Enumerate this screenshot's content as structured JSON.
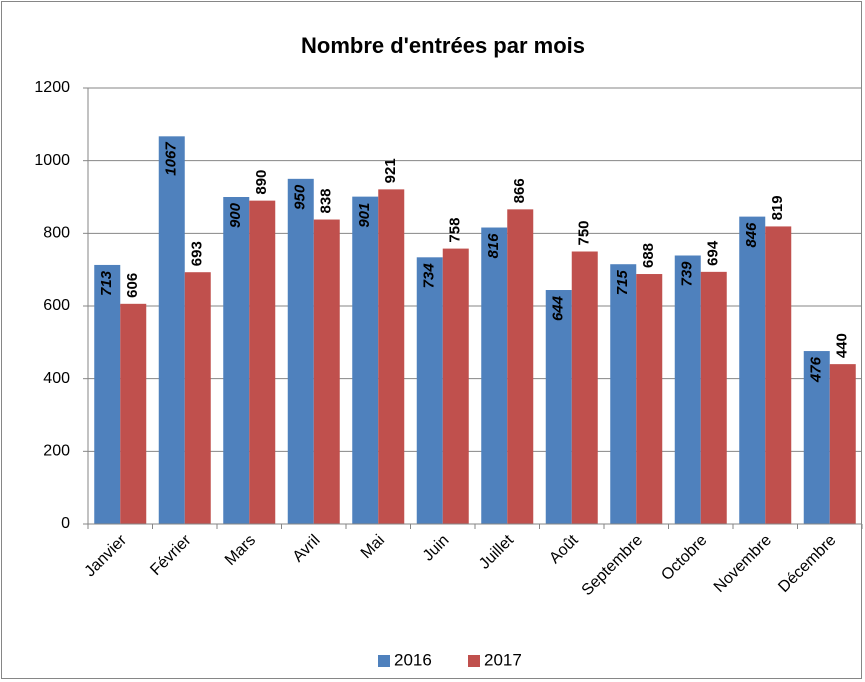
{
  "chart_data": {
    "type": "bar",
    "title": "Nombre d'entrées par mois",
    "categories": [
      "Janvier",
      "Février",
      "Mars",
      "Avril",
      "Mai",
      "Juin",
      "Juillet",
      "Août",
      "Septembre",
      "Octobre",
      "Novembre",
      "Décembre"
    ],
    "series": [
      {
        "name": "2016",
        "color": "#4f81bd",
        "values": [
          713,
          1067,
          900,
          950,
          901,
          734,
          816,
          644,
          715,
          739,
          846,
          476
        ]
      },
      {
        "name": "2017",
        "color": "#c0504d",
        "values": [
          606,
          693,
          890,
          838,
          921,
          758,
          866,
          750,
          688,
          694,
          819,
          440
        ]
      }
    ],
    "ylim": [
      0,
      1200
    ],
    "yticks": [
      0,
      200,
      400,
      600,
      800,
      1000,
      1200
    ],
    "grid": true,
    "legend": "bottom"
  }
}
